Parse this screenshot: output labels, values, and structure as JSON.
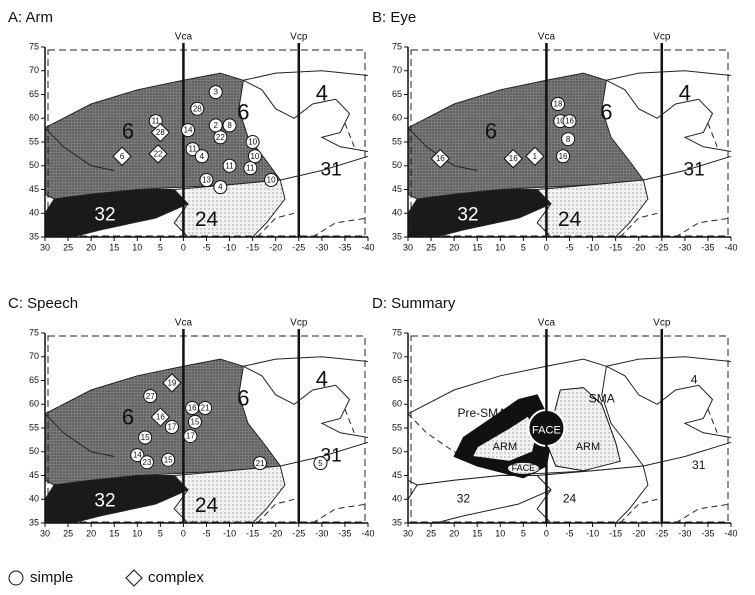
{
  "chart_data": [
    {
      "type": "scatter",
      "title": "A: Arm",
      "xlim": [
        30,
        -40
      ],
      "ylim": [
        35,
        75
      ],
      "xticks": [
        30,
        25,
        20,
        15,
        10,
        5,
        0,
        -5,
        -10,
        -15,
        -20,
        -25,
        -30,
        -35,
        -40
      ],
      "yticks": [
        35,
        40,
        45,
        50,
        55,
        60,
        65,
        70,
        75
      ],
      "reference_lines": [
        {
          "label": "Vca",
          "x": 0
        },
        {
          "label": "Vcp",
          "x": -25
        }
      ],
      "annotations": [
        "6",
        "6",
        "4",
        "31",
        "32",
        "24"
      ],
      "series": [
        {
          "marker": "circle",
          "x": [
            -7,
            -3,
            -7,
            -10,
            -8,
            -15,
            -2,
            -10,
            -15.5,
            -14.5,
            -5,
            -8,
            -19,
            6,
            -1,
            -4
          ],
          "values": [
            65.5,
            62,
            58.5,
            58.5,
            56,
            55,
            53.5,
            50,
            52,
            49.5,
            47,
            45.5,
            47,
            59.4,
            57.5,
            52
          ],
          "labels": [
            "3",
            "28",
            "2",
            "8",
            "22",
            "10",
            "11",
            "11",
            "10",
            "11",
            "13",
            "4",
            "10",
            "11",
            "14",
            "4"
          ]
        },
        {
          "marker": "diamond",
          "x": [
            5,
            5.5,
            13.3
          ],
          "values": [
            57,
            52.5,
            52
          ],
          "labels": [
            "28",
            "22",
            "6"
          ]
        }
      ]
    },
    {
      "type": "scatter",
      "title": "B: Eye",
      "xlim": [
        30,
        -40
      ],
      "ylim": [
        35,
        75
      ],
      "xticks": [
        30,
        25,
        20,
        15,
        10,
        5,
        0,
        -5,
        -10,
        -15,
        -20,
        -25,
        -30,
        -35,
        -40
      ],
      "yticks": [
        35,
        40,
        45,
        50,
        55,
        60,
        65,
        70,
        75
      ],
      "reference_lines": [
        {
          "label": "Vca",
          "x": 0
        },
        {
          "label": "Vcp",
          "x": -25
        }
      ],
      "annotations": [
        "6",
        "6",
        "4",
        "31",
        "32",
        "24"
      ],
      "series": [
        {
          "marker": "circle",
          "x": [
            -2.5,
            -3,
            -5,
            -4.7,
            -3.6
          ],
          "values": [
            63,
            59.4,
            59.4,
            55.6,
            52
          ],
          "labels": [
            "18",
            "10",
            "16",
            "8",
            "16"
          ]
        },
        {
          "marker": "diamond",
          "x": [
            23,
            7.2,
            2.5
          ],
          "values": [
            51.5,
            51.5,
            52
          ],
          "labels": [
            "16",
            "16",
            "1"
          ]
        }
      ]
    },
    {
      "type": "scatter",
      "title": "C: Speech",
      "xlim": [
        30,
        -40
      ],
      "ylim": [
        35,
        75
      ],
      "xticks": [
        30,
        25,
        20,
        15,
        10,
        5,
        0,
        -5,
        -10,
        -15,
        -20,
        -25,
        -30,
        -35,
        -40
      ],
      "yticks": [
        35,
        40,
        45,
        50,
        55,
        60,
        65,
        70,
        75
      ],
      "reference_lines": [
        {
          "label": "Vca",
          "x": 0
        },
        {
          "label": "Vcp",
          "x": -25
        }
      ],
      "annotations": [
        "6",
        "6",
        "4",
        "31",
        "32",
        "24"
      ],
      "series": [
        {
          "marker": "circle",
          "x": [
            7.2,
            2.5,
            8.3,
            10,
            7.9,
            -1.9,
            -4.7,
            -2.5,
            -1.5,
            3.3,
            -16.6,
            -29.7
          ],
          "values": [
            61.7,
            55.2,
            53,
            49.3,
            47.8,
            59.2,
            59.2,
            56.3,
            53.3,
            48.3,
            47.6,
            47.6
          ],
          "labels": [
            "27",
            "17",
            "15",
            "14",
            "23",
            "16",
            "21",
            "15",
            "17",
            "15",
            "21",
            "5"
          ]
        },
        {
          "marker": "diamond",
          "x": [
            2.5,
            5
          ],
          "values": [
            64.5,
            57.3
          ],
          "labels": [
            "19",
            "16"
          ]
        }
      ]
    },
    {
      "type": "scatter",
      "title": "D: Summary",
      "xlim": [
        30,
        -40
      ],
      "ylim": [
        35,
        75
      ],
      "xticks": [
        30,
        25,
        20,
        15,
        10,
        5,
        0,
        -5,
        -10,
        -15,
        -20,
        -25,
        -30,
        -35,
        -40
      ],
      "yticks": [
        35,
        40,
        45,
        50,
        55,
        60,
        65,
        70,
        75
      ],
      "reference_lines": [
        {
          "label": "Vca",
          "x": 0
        },
        {
          "label": "Vcp",
          "x": -25
        }
      ],
      "annotations": [
        "Pre-SMA",
        "SMA",
        "ARM",
        "FACE",
        "ARM",
        "FACE",
        "4",
        "31",
        "32",
        "24"
      ],
      "series": []
    }
  ],
  "legend": [
    {
      "name": "simple",
      "marker": "circle"
    },
    {
      "name": "complex",
      "marker": "diamond"
    }
  ]
}
